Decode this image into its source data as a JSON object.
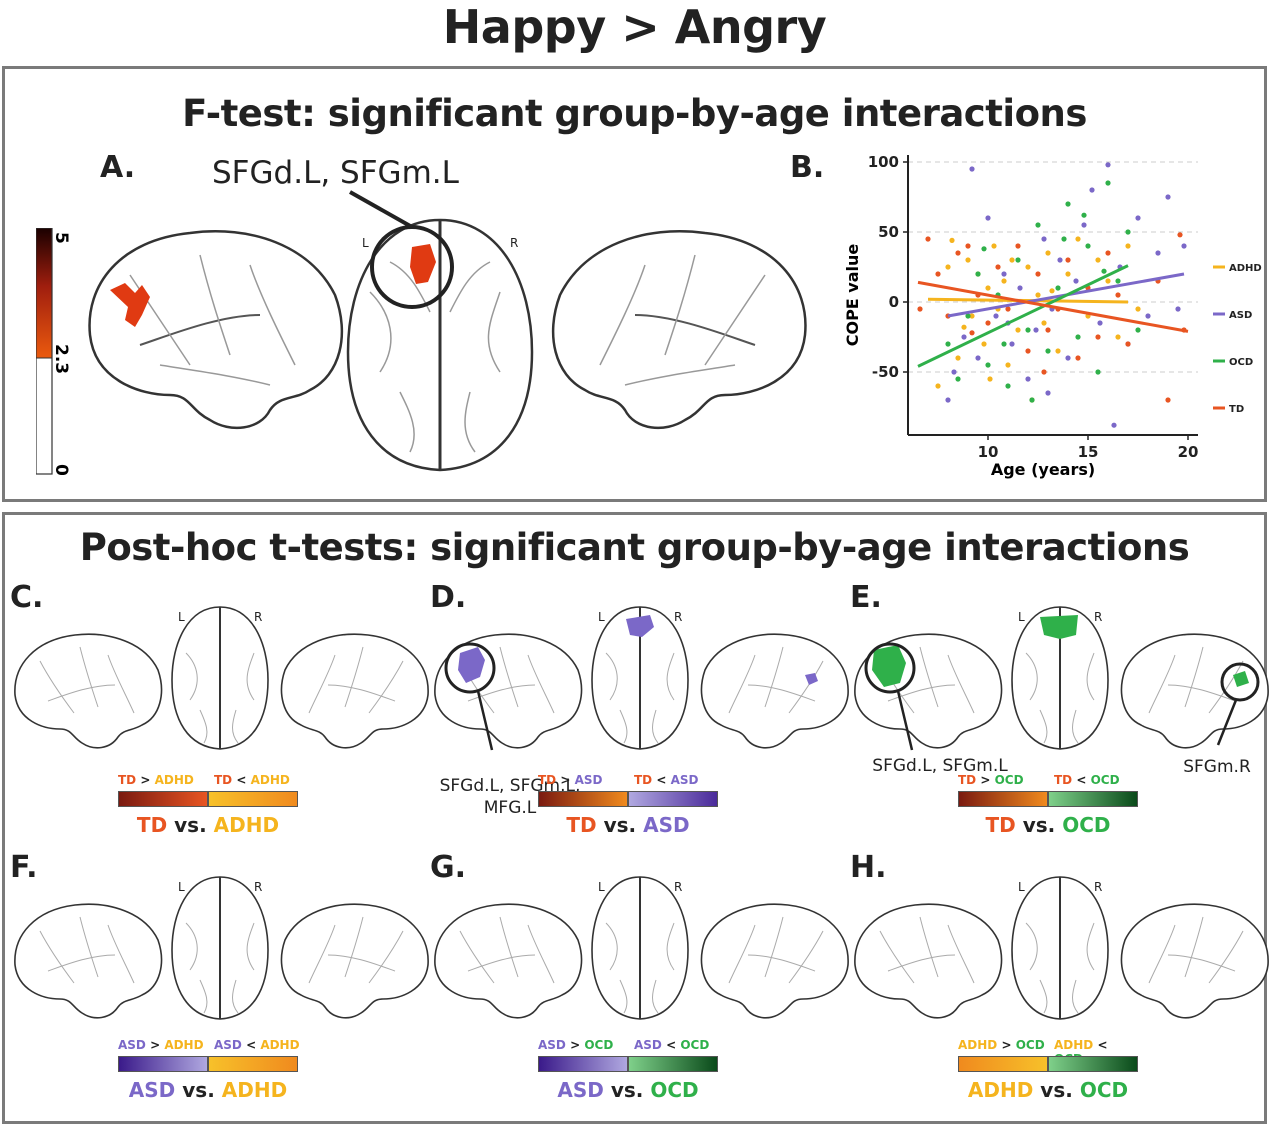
{
  "title": "Happy > Angry",
  "ftest": {
    "title": "F-test: significant group-by-age interactions",
    "panel_a_label": "A.",
    "panel_b_label": "B.",
    "region_annotation": "SFGd.L, SFGm.L",
    "colorbar": {
      "max": "5",
      "threshold": "2.3",
      "min": "0",
      "colors": [
        "#1a0000",
        "#e8580e",
        "#ffffff"
      ]
    },
    "hemi_left": "L",
    "hemi_right": "R"
  },
  "chart_data": {
    "type": "scatter",
    "xlabel": "Age (years)",
    "ylabel": "COPE value",
    "xlim": [
      6,
      20.5
    ],
    "ylim": [
      -95,
      105
    ],
    "xticks": [
      "10",
      "15",
      "20"
    ],
    "yticks": [
      "100",
      "50",
      "0",
      "-50"
    ],
    "grid": "horizontal dashed",
    "legend_position": "right",
    "series": [
      {
        "name": "ADHD",
        "color": "#f5b41e",
        "fit": [
          [
            7,
            2
          ],
          [
            17,
            0
          ]
        ],
        "points": [
          [
            7.5,
            -60
          ],
          [
            8,
            25
          ],
          [
            8.2,
            44
          ],
          [
            8.5,
            -40
          ],
          [
            9,
            30
          ],
          [
            9.2,
            -10
          ],
          [
            9.5,
            20
          ],
          [
            9.8,
            -30
          ],
          [
            10,
            10
          ],
          [
            10.3,
            40
          ],
          [
            10.5,
            -5
          ],
          [
            10.8,
            15
          ],
          [
            11,
            -45
          ],
          [
            11.2,
            30
          ],
          [
            11.5,
            -20
          ],
          [
            12,
            25
          ],
          [
            12.2,
            -70
          ],
          [
            12.5,
            5
          ],
          [
            12.8,
            -15
          ],
          [
            13,
            35
          ],
          [
            13.5,
            -35
          ],
          [
            14,
            20
          ],
          [
            14.5,
            45
          ],
          [
            15,
            -10
          ],
          [
            15.5,
            30
          ],
          [
            16,
            15
          ],
          [
            16.5,
            -25
          ],
          [
            17,
            40
          ],
          [
            17.5,
            -5
          ],
          [
            8.8,
            -18
          ],
          [
            10.1,
            -55
          ],
          [
            13.2,
            8
          ]
        ]
      },
      {
        "name": "ASD",
        "color": "#7b68c8",
        "fit": [
          [
            8,
            -10
          ],
          [
            19.8,
            20
          ]
        ],
        "points": [
          [
            8,
            -70
          ],
          [
            8.3,
            -50
          ],
          [
            8.8,
            -25
          ],
          [
            9.2,
            95
          ],
          [
            9.5,
            -40
          ],
          [
            10,
            60
          ],
          [
            10.4,
            -10
          ],
          [
            10.8,
            20
          ],
          [
            11.2,
            -30
          ],
          [
            11.6,
            10
          ],
          [
            12,
            -55
          ],
          [
            12.4,
            -20
          ],
          [
            12.8,
            45
          ],
          [
            13.2,
            -5
          ],
          [
            13.6,
            30
          ],
          [
            14,
            -40
          ],
          [
            14.4,
            15
          ],
          [
            14.8,
            55
          ],
          [
            15.2,
            80
          ],
          [
            15.6,
            -15
          ],
          [
            16,
            98
          ],
          [
            16.3,
            -88
          ],
          [
            16.6,
            25
          ],
          [
            17,
            -30
          ],
          [
            17.5,
            60
          ],
          [
            18,
            -10
          ],
          [
            18.5,
            35
          ],
          [
            19,
            75
          ],
          [
            19.5,
            -5
          ],
          [
            19.8,
            40
          ],
          [
            13,
            -65
          ],
          [
            11,
            -15
          ]
        ]
      },
      {
        "name": "OCD",
        "color": "#2fb04a",
        "fit": [
          [
            6.5,
            -46
          ],
          [
            17,
            26
          ]
        ],
        "points": [
          [
            8,
            -30
          ],
          [
            8.5,
            -55
          ],
          [
            9,
            -10
          ],
          [
            9.5,
            20
          ],
          [
            10,
            -45
          ],
          [
            10.5,
            5
          ],
          [
            11,
            -60
          ],
          [
            11.5,
            30
          ],
          [
            12,
            -20
          ],
          [
            12.5,
            55
          ],
          [
            13,
            -35
          ],
          [
            13.5,
            10
          ],
          [
            14,
            70
          ],
          [
            14.5,
            -25
          ],
          [
            15,
            40
          ],
          [
            15.5,
            -50
          ],
          [
            16,
            85
          ],
          [
            16.5,
            15
          ],
          [
            17,
            50
          ],
          [
            13.8,
            45
          ],
          [
            14.8,
            62
          ],
          [
            12.2,
            -70
          ],
          [
            10.8,
            -30
          ],
          [
            9.8,
            38
          ],
          [
            15.8,
            22
          ],
          [
            17.5,
            -20
          ]
        ]
      },
      {
        "name": "TD",
        "color": "#e85522",
        "fit": [
          [
            6.5,
            14
          ],
          [
            20,
            -21
          ]
        ],
        "points": [
          [
            6.6,
            -5
          ],
          [
            7,
            45
          ],
          [
            7.5,
            20
          ],
          [
            8,
            -10
          ],
          [
            8.5,
            35
          ],
          [
            9,
            40
          ],
          [
            9.5,
            5
          ],
          [
            10,
            -15
          ],
          [
            10.5,
            25
          ],
          [
            11,
            -5
          ],
          [
            11.5,
            40
          ],
          [
            12,
            -35
          ],
          [
            12.5,
            20
          ],
          [
            13,
            -20
          ],
          [
            13.5,
            -5
          ],
          [
            14,
            30
          ],
          [
            14.5,
            -40
          ],
          [
            15,
            10
          ],
          [
            15.5,
            -25
          ],
          [
            16,
            35
          ],
          [
            16.5,
            5
          ],
          [
            17,
            -30
          ],
          [
            19,
            -70
          ],
          [
            19.8,
            -20
          ],
          [
            9.2,
            -22
          ],
          [
            12.8,
            -50
          ],
          [
            18.5,
            15
          ],
          [
            19.6,
            48
          ]
        ]
      }
    ]
  },
  "posthoc": {
    "title": "Post-hoc t-tests: significant group-by-age interactions",
    "panels": [
      {
        "label": "C.",
        "left": "TD",
        "right": "ADHD",
        "top_left": [
          "TD",
          " > ",
          "ADHD"
        ],
        "top_right": [
          "TD",
          " < ",
          "ADHD"
        ],
        "vs": "vs.",
        "colors_left": [
          "#7a1a10",
          "#e85522"
        ],
        "colors_right": [
          "#f7c12a",
          "#f08a1e"
        ],
        "lc": "#e85522",
        "rc": "#f5b41e",
        "annotation": ""
      },
      {
        "label": "D.",
        "left": "TD",
        "right": "ASD",
        "top_left": [
          "TD",
          " > ",
          "ASD"
        ],
        "top_right": [
          "TD",
          " < ",
          "ASD"
        ],
        "vs": "vs.",
        "colors_left": [
          "#7a1a10",
          "#f08a1e"
        ],
        "colors_right": [
          "#b0a8e0",
          "#4a2a9a"
        ],
        "lc": "#e85522",
        "rc": "#7b68c8",
        "annotation": "SFGd.L, SFGm.L, MFG.L"
      },
      {
        "label": "E.",
        "left": "TD",
        "right": "OCD",
        "top_left": [
          "TD",
          " > ",
          "OCD"
        ],
        "top_right": [
          "TD",
          " < ",
          "OCD"
        ],
        "vs": "vs.",
        "colors_left": [
          "#7a1a10",
          "#f08a1e"
        ],
        "colors_right": [
          "#7fd08a",
          "#0a4a1a"
        ],
        "lc": "#e85522",
        "rc": "#2fb04a",
        "annotation": "SFGd.L, SFGm.L",
        "annotation2": "SFGm.R"
      },
      {
        "label": "F.",
        "left": "ASD",
        "right": "ADHD",
        "top_left": [
          "ASD",
          " > ",
          "ADHD"
        ],
        "top_right": [
          "ASD",
          " < ",
          "ADHD"
        ],
        "vs": "vs.",
        "colors_left": [
          "#3a1a8a",
          "#b0a8e0"
        ],
        "colors_right": [
          "#f7c12a",
          "#f08a1e"
        ],
        "lc": "#7b68c8",
        "rc": "#f5b41e",
        "annotation": ""
      },
      {
        "label": "G.",
        "left": "ASD",
        "right": "OCD",
        "top_left": [
          "ASD",
          " > ",
          "OCD"
        ],
        "top_right": [
          "ASD",
          " < ",
          "OCD"
        ],
        "vs": "vs.",
        "colors_left": [
          "#3a1a8a",
          "#b0a8e0"
        ],
        "colors_right": [
          "#7fd08a",
          "#0a4a1a"
        ],
        "lc": "#7b68c8",
        "rc": "#2fb04a",
        "annotation": ""
      },
      {
        "label": "H.",
        "left": "ADHD",
        "right": "OCD",
        "top_left": [
          "ADHD",
          " > ",
          "OCD"
        ],
        "top_right": [
          "ADHD",
          " < ",
          "OCD"
        ],
        "vs": "vs.",
        "colors_left": [
          "#f08a1e",
          "#f7c12a"
        ],
        "colors_right": [
          "#7fd08a",
          "#0a4a1a"
        ],
        "lc": "#f5b41e",
        "rc": "#2fb04a",
        "annotation": ""
      }
    ],
    "hemi_left": "L",
    "hemi_right": "R"
  }
}
